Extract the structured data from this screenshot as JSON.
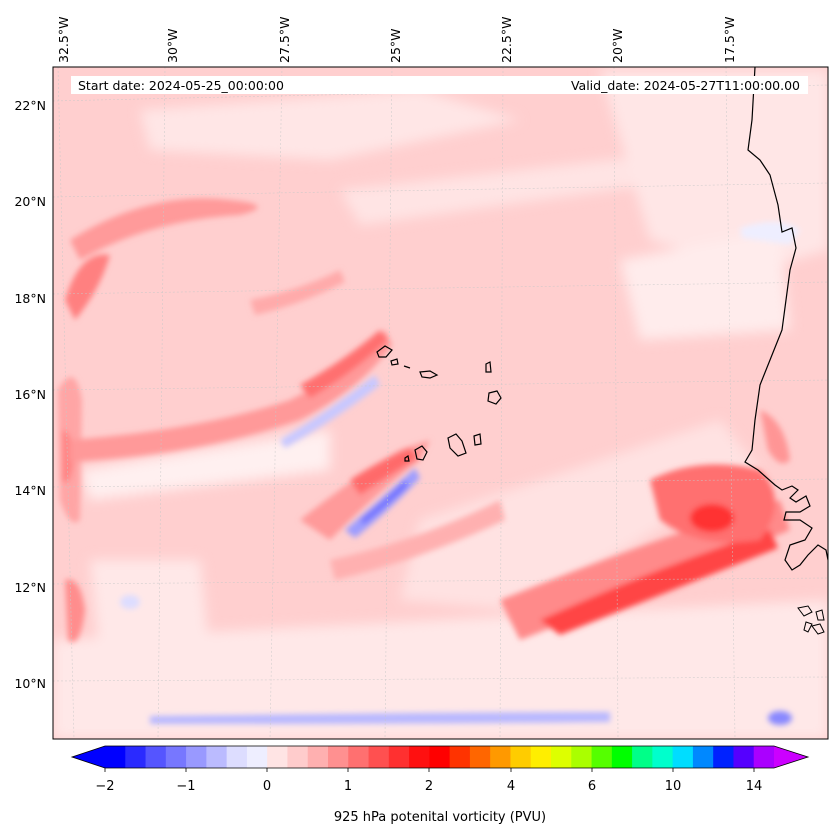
{
  "map": {
    "start_date": "Start date: 2024-05-25_00:00:00",
    "valid_date": "Valid_date: 2024-05-27T11:00:00.00",
    "lon_labels": [
      "32.5°W",
      "30°W",
      "27.5°W",
      "25°W",
      "22.5°W",
      "20°W",
      "17.5°W"
    ],
    "lat_labels": [
      "22°N",
      "20°N",
      "18°N",
      "16°N",
      "14°N",
      "12°N",
      "10°N"
    ],
    "features": [
      "Cape Verde islands",
      "West African coastline"
    ]
  },
  "colorbar": {
    "label": "925 hPa potenital vorticity (PVU)",
    "ticks": [
      "−2",
      "−1",
      "0",
      "1",
      "2",
      "4",
      "6",
      "10",
      "14"
    ],
    "colors": [
      "#0000ff",
      "#2a2aff",
      "#5555ff",
      "#7777ff",
      "#9999ff",
      "#bbbbff",
      "#ddddff",
      "#eeeeff",
      "#ffe4e4",
      "#ffcccc",
      "#ffb0b0",
      "#ff9090",
      "#ff7070",
      "#ff5050",
      "#ff3030",
      "#ff1010",
      "#ff0000",
      "#ff3300",
      "#ff6600",
      "#ff9900",
      "#ffcc00",
      "#ffee00",
      "#ddff00",
      "#aaff00",
      "#55ff00",
      "#00ff00",
      "#00ff88",
      "#00ffcc",
      "#00ddff",
      "#0088ff",
      "#0022ff",
      "#5500ff",
      "#aa00ff"
    ],
    "extend_low": "#0000ff",
    "extend_high": "#cc00ff"
  }
}
